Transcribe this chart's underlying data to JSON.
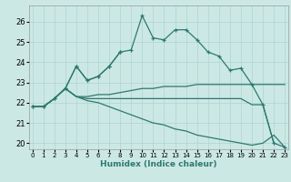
{
  "x": [
    0,
    1,
    2,
    3,
    4,
    5,
    6,
    7,
    8,
    9,
    10,
    11,
    12,
    13,
    14,
    15,
    16,
    17,
    18,
    19,
    20,
    21,
    22,
    23
  ],
  "series_peak": [
    21.8,
    21.8,
    22.2,
    22.7,
    23.8,
    23.1,
    23.3,
    23.8,
    24.5,
    24.6,
    26.3,
    25.2,
    25.1,
    25.6,
    25.6,
    25.1,
    24.5,
    24.3,
    23.6,
    23.7,
    22.9,
    21.9,
    20.0,
    19.8
  ],
  "series_short": [
    21.8,
    21.8,
    22.2,
    22.7,
    23.8,
    23.1,
    23.3,
    23.8,
    24.5,
    null,
    null,
    null,
    null,
    null,
    null,
    null,
    null,
    null,
    null,
    null,
    null,
    null,
    null,
    null
  ],
  "series_slowrise": [
    21.8,
    21.8,
    22.2,
    22.7,
    22.3,
    22.3,
    22.4,
    22.4,
    22.5,
    22.6,
    22.7,
    22.7,
    22.8,
    22.8,
    22.8,
    22.9,
    22.9,
    22.9,
    22.9,
    22.9,
    22.9,
    22.9,
    22.9,
    22.9
  ],
  "series_flat": [
    21.8,
    21.8,
    22.2,
    22.7,
    22.3,
    22.2,
    22.2,
    22.2,
    22.2,
    22.2,
    22.2,
    22.2,
    22.2,
    22.2,
    22.2,
    22.2,
    22.2,
    22.2,
    22.2,
    22.2,
    21.9,
    21.9,
    20.0,
    null
  ],
  "series_decline": [
    21.8,
    21.8,
    22.2,
    22.7,
    22.3,
    22.1,
    22.0,
    21.8,
    21.6,
    21.4,
    21.2,
    21.0,
    20.9,
    20.7,
    20.6,
    20.4,
    20.3,
    20.2,
    20.1,
    20.0,
    19.9,
    20.0,
    20.4,
    19.8
  ],
  "color": "#2d7a6e",
  "bg_color": "#cce8e5",
  "grid_color": "#afd4d0",
  "xlabel": "Humidex (Indice chaleur)",
  "ymin": 19.7,
  "ymax": 26.8,
  "xmin": -0.3,
  "xmax": 23.3,
  "yticks": [
    20,
    21,
    22,
    23,
    24,
    25,
    26
  ],
  "xticks": [
    0,
    1,
    2,
    3,
    4,
    5,
    6,
    7,
    8,
    9,
    10,
    11,
    12,
    13,
    14,
    15,
    16,
    17,
    18,
    19,
    20,
    21,
    22,
    23
  ]
}
